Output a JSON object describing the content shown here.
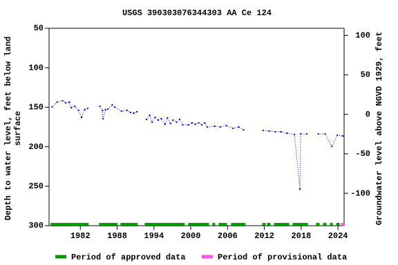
{
  "chart_data": {
    "type": "line",
    "title": "USGS 390303076344303 AA Ce 124",
    "ylabel": [
      "Depth to water level, feet below land",
      "surface"
    ],
    "y2label": "Groundwater level above NGVD 1929, feet",
    "xlim": [
      1976.9,
      2025.0
    ],
    "xticks": [
      1982,
      1988,
      1994,
      2000,
      2006,
      2012,
      2018,
      2024
    ],
    "ylim": [
      50,
      300
    ],
    "yticks": [
      50,
      100,
      150,
      200,
      250,
      300
    ],
    "y2lim": [
      109,
      -141
    ],
    "y2ticks": [
      100,
      50,
      0,
      -50,
      -100
    ],
    "series": [
      {
        "color": "#0000cc",
        "x": [
          1977.4,
          1978.2,
          1979.1,
          1979.6,
          1980.2,
          1980.5,
          1981.1,
          1981.7,
          1982.2,
          1982.7,
          1983.2,
          1984.2,
          1985.2,
          1985.6,
          1985.7,
          1986.1,
          1986.5,
          1987.2,
          1987.6,
          1988.7,
          1989.6,
          1990.2,
          1990.7,
          1991.2,
          1992.0,
          1992.8,
          1993.3,
          1993.7,
          1994.2,
          1994.7,
          1995.2,
          1995.8,
          1996.2,
          1996.7,
          1997.1,
          1997.7,
          1998.2,
          1998.7,
          1999.6,
          2000.2,
          2000.7,
          2001.3,
          2001.8,
          2002.3,
          2002.7,
          2003.9,
          2004.8,
          2005.8,
          2006.9,
          2007.8,
          2008.6,
          2010.2,
          2011.8,
          2012.8,
          2013.8,
          2014.7,
          2015.7,
          2016.9,
          2017.8,
          2017.9,
          2018.9,
          2019.8,
          2020.8,
          2021.9,
          2023.0,
          2023.9,
          2024.8
        ],
        "values": [
          149.6,
          143.5,
          141.8,
          144.4,
          143.5,
          150.5,
          148.8,
          154,
          162.8,
          153,
          151.4,
          null,
          148.8,
          154,
          164.5,
          153,
          152.3,
          147,
          149.6,
          154.9,
          154,
          156.6,
          157.5,
          155.8,
          null,
          165.4,
          160.1,
          168.9,
          162.8,
          166.3,
          164.5,
          171.5,
          163.6,
          170.6,
          166.3,
          168.9,
          165.4,
          172.4,
          172.4,
          169.8,
          171.5,
          169.8,
          172.4,
          169.8,
          175,
          174.1,
          175,
          173.3,
          176.7,
          175,
          178.5,
          null,
          179.4,
          180.2,
          181.1,
          181.1,
          182.9,
          184.6,
          253.7,
          183.7,
          183.7,
          null,
          183.7,
          183.7,
          199.5,
          185.5,
          186.4
        ]
      }
    ],
    "bands": [
      {
        "name": "Period of approved data",
        "color": "#009900",
        "ranges": [
          [
            1977.15,
            1983.35
          ],
          [
            1985.04,
            1988.09
          ],
          [
            1988.54,
            1991.36
          ],
          [
            1992.49,
            1999.02
          ],
          [
            1999.59,
            2002.97
          ],
          [
            2003.53,
            2003.98
          ],
          [
            2004.55,
            2005.9
          ],
          [
            2006.58,
            2008.94
          ],
          [
            2011.65,
            2012.21
          ],
          [
            2012.44,
            2013.0
          ],
          [
            2013.57,
            2016.05
          ],
          [
            2016.61,
            2019.09
          ],
          [
            2020.44,
            2021.0
          ],
          [
            2021.57,
            2022.14
          ],
          [
            2022.7,
            2023.15
          ],
          [
            2023.71,
            2024.28
          ]
        ]
      },
      {
        "name": "Period of provisional data",
        "color": "#ff55dd",
        "ranges": [
          [
            2024.5,
            2025.0
          ]
        ]
      }
    ]
  }
}
